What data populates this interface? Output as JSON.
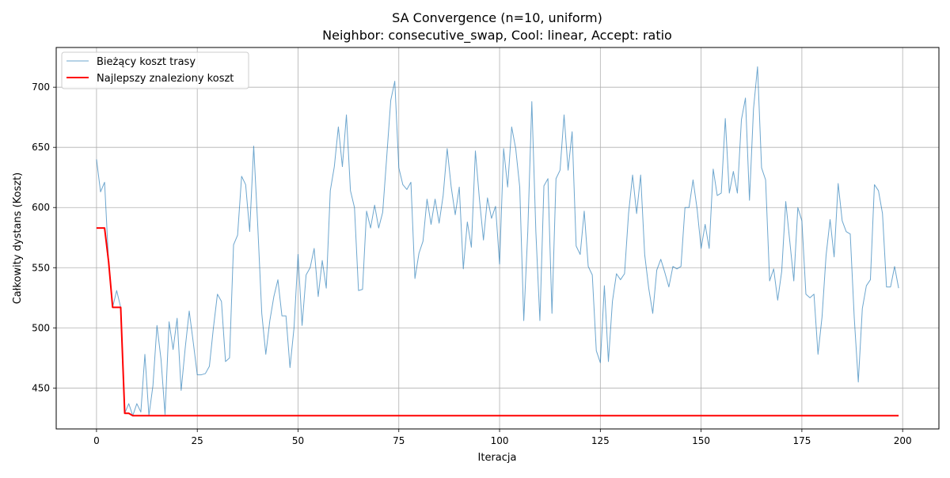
{
  "chart_data": {
    "type": "line",
    "title": "SA Convergence (n=10, uniform)",
    "subtitle": "Neighbor: consecutive_swap, Cool: linear, Accept: ratio",
    "xlabel": "Iteracja",
    "ylabel": "Całkowity dystans (Koszt)",
    "xlim": [
      -10,
      209
    ],
    "ylim": [
      416,
      733
    ],
    "xticks": [
      0,
      25,
      50,
      75,
      100,
      125,
      150,
      175,
      200
    ],
    "yticks": [
      450,
      500,
      550,
      600,
      650,
      700
    ],
    "grid": true,
    "legend_position": "top-left",
    "series": [
      {
        "name": "Bieżący koszt trasy",
        "color": "#1f77b4",
        "values": [
          640,
          613,
          621,
          555,
          517,
          531,
          517,
          429,
          437,
          427,
          437,
          430,
          478,
          427,
          452,
          502,
          474,
          428,
          505,
          482,
          508,
          448,
          483,
          514,
          488,
          461,
          461,
          462,
          468,
          500,
          528,
          522,
          472,
          475,
          569,
          577,
          626,
          619,
          580,
          651,
          585,
          512,
          478,
          506,
          526,
          540,
          510,
          510,
          467,
          500,
          561,
          502,
          544,
          550,
          566,
          526,
          556,
          533,
          614,
          634,
          667,
          634,
          677,
          614,
          600,
          531,
          532,
          597,
          583,
          602,
          583,
          596,
          642,
          689,
          705,
          633,
          619,
          615,
          621,
          541,
          562,
          572,
          607,
          586,
          607,
          587,
          610,
          649,
          617,
          594,
          617,
          549,
          588,
          567,
          647,
          607,
          573,
          608,
          591,
          601,
          553,
          649,
          617,
          667,
          649,
          617,
          506,
          580,
          688,
          580,
          506,
          618,
          624,
          512,
          624,
          631,
          677,
          631,
          663,
          568,
          561,
          597,
          551,
          544,
          481,
          471,
          535,
          472,
          522,
          545,
          540,
          545,
          595,
          627,
          595,
          627,
          561,
          533,
          512,
          548,
          557,
          546,
          534,
          551,
          549,
          551,
          600,
          600,
          623,
          599,
          566,
          586,
          566,
          632,
          610,
          612,
          674,
          612,
          630,
          612,
          673,
          691,
          606,
          682,
          717,
          633,
          623,
          539,
          549,
          523,
          547,
          605,
          572,
          539,
          600,
          589,
          528,
          525,
          528,
          478,
          509,
          560,
          590,
          559,
          620,
          589,
          580,
          578,
          508,
          455,
          516,
          535,
          540,
          619,
          614,
          595,
          534,
          534,
          551,
          533
        ]
      },
      {
        "name": "Najlepszy znaleziony koszt",
        "color": "#ff0000",
        "values": [
          583,
          583,
          583,
          555,
          517,
          517,
          517,
          429,
          429,
          427,
          427,
          427,
          427,
          427,
          427,
          427,
          427,
          427,
          427,
          427,
          427,
          427,
          427,
          427,
          427,
          427,
          427,
          427,
          427,
          427,
          427,
          427,
          427,
          427,
          427,
          427,
          427,
          427,
          427,
          427,
          427,
          427,
          427,
          427,
          427,
          427,
          427,
          427,
          427,
          427,
          427,
          427,
          427,
          427,
          427,
          427,
          427,
          427,
          427,
          427,
          427,
          427,
          427,
          427,
          427,
          427,
          427,
          427,
          427,
          427,
          427,
          427,
          427,
          427,
          427,
          427,
          427,
          427,
          427,
          427,
          427,
          427,
          427,
          427,
          427,
          427,
          427,
          427,
          427,
          427,
          427,
          427,
          427,
          427,
          427,
          427,
          427,
          427,
          427,
          427,
          427,
          427,
          427,
          427,
          427,
          427,
          427,
          427,
          427,
          427,
          427,
          427,
          427,
          427,
          427,
          427,
          427,
          427,
          427,
          427,
          427,
          427,
          427,
          427,
          427,
          427,
          427,
          427,
          427,
          427,
          427,
          427,
          427,
          427,
          427,
          427,
          427,
          427,
          427,
          427,
          427,
          427,
          427,
          427,
          427,
          427,
          427,
          427,
          427,
          427,
          427,
          427,
          427,
          427,
          427,
          427,
          427,
          427,
          427,
          427,
          427,
          427,
          427,
          427,
          427,
          427,
          427,
          427,
          427,
          427,
          427,
          427,
          427,
          427,
          427,
          427,
          427,
          427,
          427,
          427,
          427,
          427,
          427,
          427,
          427,
          427,
          427,
          427,
          427,
          427,
          427,
          427,
          427,
          427,
          427,
          427,
          427,
          427,
          427,
          427
        ]
      }
    ]
  }
}
